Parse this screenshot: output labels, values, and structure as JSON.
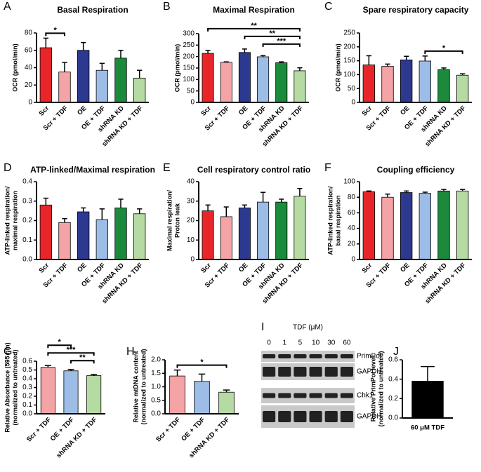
{
  "chart_data": [
    {
      "type": "bar",
      "panel_label": "A",
      "title": "Basal Respiration",
      "y_label": [
        "OCR (pmol/min)"
      ],
      "categories": [
        "Scr",
        "Scr + TDF",
        "OE",
        "OE + TDF",
        "shRNA KD",
        "shRNA KD + TDF"
      ],
      "values": [
        63,
        35,
        60,
        37,
        51,
        28
      ],
      "errors": [
        11,
        11,
        9,
        8,
        9,
        9
      ],
      "colors": [
        "#e8262a",
        "#f4a3a6",
        "#2b3990",
        "#9dbde6",
        "#1b8a3c",
        "#b5dba3"
      ],
      "ylim": [
        0,
        80
      ],
      "yticks": [
        0,
        20,
        40,
        60,
        80
      ],
      "x_label_rotation": 45,
      "annotations": [
        {
          "text": "*",
          "pair": [
            0,
            1
          ]
        }
      ]
    },
    {
      "type": "bar",
      "panel_label": "B",
      "title": "Maximal Respiration",
      "y_label": [
        "OCR (pmol/min)"
      ],
      "categories": [
        "Scr",
        "Scr + TDF",
        "OE",
        "OE + TDF",
        "shRNA KD",
        "shRNA KD + TDF"
      ],
      "values": [
        214,
        175,
        218,
        199,
        173,
        138
      ],
      "errors": [
        13,
        2,
        15,
        5,
        4,
        13
      ],
      "colors": [
        "#e8262a",
        "#f4a3a6",
        "#2b3990",
        "#9dbde6",
        "#1b8a3c",
        "#b5dba3"
      ],
      "ylim": [
        0,
        300
      ],
      "yticks": [
        0,
        50,
        100,
        150,
        200,
        250,
        300
      ],
      "x_label_rotation": 45,
      "annotations": [
        {
          "text": "***",
          "pair": [
            3,
            5
          ]
        },
        {
          "text": "**",
          "pair": [
            2,
            5
          ]
        },
        {
          "text": "**",
          "pair": [
            0,
            5
          ]
        }
      ]
    },
    {
      "type": "bar",
      "panel_label": "C",
      "title": "Spare respiratory capacity",
      "y_label": [
        "OCR (pmol/min)"
      ],
      "categories": [
        "Scr",
        "Scr + TDF",
        "OE",
        "OE + TDF",
        "shRNA KD",
        "shRNA KD + TDF"
      ],
      "values": [
        135,
        130,
        153,
        149,
        118,
        98
      ],
      "errors": [
        33,
        8,
        13,
        18,
        6,
        5
      ],
      "colors": [
        "#e8262a",
        "#f4a3a6",
        "#2b3990",
        "#9dbde6",
        "#1b8a3c",
        "#b5dba3"
      ],
      "ylim": [
        0,
        250
      ],
      "yticks": [
        0,
        50,
        100,
        150,
        200,
        250
      ],
      "x_label_rotation": 45,
      "annotations": [
        {
          "text": "*",
          "pair": [
            3,
            5
          ]
        }
      ]
    },
    {
      "type": "bar",
      "panel_label": "D",
      "title": "ATP-linked/Maximal respiration",
      "y_label": [
        "ATP-linked respiration/",
        "maximal respiration"
      ],
      "categories": [
        "Scr",
        "Scr + TDF",
        "OE",
        "OE + TDF",
        "shRNA KD",
        "shRNA KD + TDF"
      ],
      "values": [
        0.28,
        0.19,
        0.245,
        0.205,
        0.265,
        0.235
      ],
      "errors": [
        0.035,
        0.02,
        0.02,
        0.055,
        0.045,
        0.025
      ],
      "colors": [
        "#e8262a",
        "#f4a3a6",
        "#2b3990",
        "#9dbde6",
        "#1b8a3c",
        "#b5dba3"
      ],
      "ylim": [
        0,
        0.4
      ],
      "yticks": [
        {
          "value": 0,
          "label": "0.0"
        },
        0.1,
        0.2,
        0.3,
        0.4
      ],
      "x_label_rotation": 45
    },
    {
      "type": "bar",
      "panel_label": "E",
      "title": "Cell respiratory control ratio",
      "y_label": [
        "Maximal respiration/",
        "Proton leak"
      ],
      "categories": [
        "Scr",
        "Scr + TDF",
        "OE",
        "OE + TDF",
        "shRNA KD",
        "shRNA KD + TDF"
      ],
      "values": [
        25,
        22,
        26.5,
        29.5,
        29.5,
        32.5
      ],
      "errors": [
        3,
        5,
        1.5,
        5,
        1.5,
        4
      ],
      "colors": [
        "#e8262a",
        "#f4a3a6",
        "#2b3990",
        "#9dbde6",
        "#1b8a3c",
        "#b5dba3"
      ],
      "ylim": [
        0,
        40
      ],
      "yticks": [
        0,
        10,
        20,
        30,
        40
      ],
      "x_label_rotation": 45
    },
    {
      "type": "bar",
      "panel_label": "F",
      "title": "Coupling efficiency",
      "y_label": [
        "ATP-linked respiration/",
        "basal respiration"
      ],
      "categories": [
        "Scr",
        "Scr + TDF",
        "OE",
        "OE + TDF",
        "shRNA KD",
        "shRNA KD + TDF"
      ],
      "values": [
        87,
        80,
        86,
        85,
        88,
        88
      ],
      "errors": [
        1,
        4,
        2,
        1.5,
        2,
        2
      ],
      "colors": [
        "#e8262a",
        "#f4a3a6",
        "#2b3990",
        "#9dbde6",
        "#1b8a3c",
        "#b5dba3"
      ],
      "ylim": [
        0,
        100
      ],
      "yticks": [
        0,
        20,
        40,
        60,
        80,
        100
      ],
      "x_label_rotation": 45
    },
    {
      "type": "bar",
      "panel_label": "G",
      "y_label": [
        "Relative Absorbance (595 nm)",
        "(normalized to untreated)"
      ],
      "categories": [
        "Scr + TDF",
        "OE + TDF",
        "shRNA KD + TDF"
      ],
      "values": [
        0.53,
        0.49,
        0.435
      ],
      "errors": [
        0.02,
        0.015,
        0.015
      ],
      "colors": [
        "#f4a3a6",
        "#9dbde6",
        "#b5dba3"
      ],
      "ylim": [
        0,
        0.6
      ],
      "yticks": [
        {
          "value": 0,
          "label": "0.0"
        },
        0.1,
        0.2,
        0.3,
        0.4,
        0.5,
        0.6
      ],
      "x_label_rotation": 45,
      "annotations": [
        {
          "text": "**",
          "pair": [
            1,
            2
          ]
        },
        {
          "text": "***",
          "pair": [
            0,
            2
          ]
        },
        {
          "text": "*",
          "pair": [
            0,
            1
          ]
        }
      ]
    },
    {
      "type": "bar",
      "panel_label": "H",
      "y_label": [
        "Relative mtDNA content",
        "(normalized to untreated)"
      ],
      "categories": [
        "Scr + TDF",
        "OE + TDF",
        "shRNA KD + TDF"
      ],
      "values": [
        1.4,
        1.2,
        0.8
      ],
      "errors": [
        0.22,
        0.27,
        0.08
      ],
      "colors": [
        "#f4a3a6",
        "#9dbde6",
        "#b5dba3"
      ],
      "ylim": [
        0,
        2
      ],
      "yticks": [
        {
          "value": 0,
          "label": "0.0"
        },
        0.5,
        {
          "value": 1,
          "label": "1.0"
        },
        1.5,
        {
          "value": 2,
          "label": "2.0"
        }
      ],
      "x_label_rotation": 45,
      "annotations": [
        {
          "text": "*",
          "pair": [
            0,
            2
          ]
        }
      ]
    },
    {
      "type": "blot",
      "panel_label": "I",
      "title": "TDF (μM)",
      "lanes": [
        "0",
        "1",
        "5",
        "10",
        "30",
        "60"
      ],
      "band_labels": [
        "PrimPol",
        "GAPDH",
        "Chk1",
        "GAPDH"
      ]
    },
    {
      "type": "bar",
      "panel_label": "J",
      "y_label": [
        "Relative PrimPol level",
        "(normalized to untreated)"
      ],
      "categories": [
        "60 μM TDF"
      ],
      "values": [
        0.38
      ],
      "errors": [
        0.15
      ],
      "colors": [
        "#000000"
      ],
      "ylim": [
        0,
        0.6
      ],
      "yticks": [
        {
          "value": 0,
          "label": "0.0"
        },
        0.2,
        0.4,
        0.6
      ],
      "x_label_rotation": 0
    }
  ]
}
